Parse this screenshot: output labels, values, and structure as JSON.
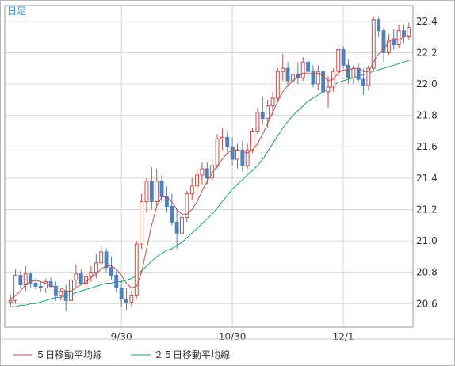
{
  "chart_data": {
    "type": "candlestick",
    "period_label": "日足",
    "ylim": [
      20.45,
      22.5
    ],
    "y_ticks": [
      20.6,
      20.8,
      21.0,
      21.2,
      21.4,
      21.6,
      21.8,
      22.0,
      22.2,
      22.4
    ],
    "y_tick_labels": [
      "20.6",
      "20.8",
      "21.0",
      "21.2",
      "21.4",
      "21.6",
      "21.8",
      "22.0",
      "22.2",
      "22.4"
    ],
    "x_ticks": [
      {
        "index": 22,
        "label": "9/30"
      },
      {
        "index": 44,
        "label": "10/30"
      },
      {
        "index": 66,
        "label": "12/1"
      }
    ],
    "grid": true,
    "up_color": "#c0504d",
    "down_color": "#4f81bd",
    "legend": [
      {
        "label": "５日移動平均線",
        "color": "#c0504d"
      },
      {
        "label": "２５日移動平均線",
        "color": "#1a9f74"
      }
    ],
    "candles": [
      [
        20.61,
        20.66,
        20.58,
        20.62
      ],
      [
        20.62,
        20.82,
        20.6,
        20.78
      ],
      [
        20.78,
        20.81,
        20.7,
        20.72
      ],
      [
        20.72,
        20.84,
        20.68,
        20.79
      ],
      [
        20.79,
        20.8,
        20.7,
        20.73
      ],
      [
        20.73,
        20.76,
        20.69,
        20.71
      ],
      [
        20.71,
        20.74,
        20.68,
        20.7
      ],
      [
        20.7,
        20.76,
        20.67,
        20.74
      ],
      [
        20.74,
        20.77,
        20.7,
        20.71
      ],
      [
        20.71,
        20.74,
        20.62,
        20.65
      ],
      [
        20.65,
        20.7,
        20.62,
        20.68
      ],
      [
        20.68,
        20.72,
        20.55,
        20.62
      ],
      [
        20.62,
        20.8,
        20.6,
        20.75
      ],
      [
        20.75,
        20.85,
        20.7,
        20.79
      ],
      [
        20.79,
        20.82,
        20.72,
        20.73
      ],
      [
        20.73,
        20.8,
        20.7,
        20.77
      ],
      [
        20.77,
        20.84,
        20.74,
        20.8
      ],
      [
        20.8,
        20.92,
        20.76,
        20.86
      ],
      [
        20.86,
        20.97,
        20.82,
        20.93
      ],
      [
        20.93,
        20.95,
        20.8,
        20.83
      ],
      [
        20.83,
        20.9,
        20.75,
        20.78
      ],
      [
        20.78,
        20.82,
        20.67,
        20.7
      ],
      [
        20.7,
        20.75,
        20.58,
        20.63
      ],
      [
        20.63,
        20.7,
        20.56,
        20.61
      ],
      [
        20.61,
        20.68,
        20.58,
        20.65
      ],
      [
        20.65,
        21.0,
        20.63,
        20.98
      ],
      [
        20.98,
        21.3,
        20.95,
        21.25
      ],
      [
        21.25,
        21.4,
        21.18,
        21.38
      ],
      [
        21.38,
        21.47,
        21.2,
        21.25
      ],
      [
        21.25,
        21.46,
        21.22,
        21.38
      ],
      [
        21.38,
        21.42,
        21.25,
        21.28
      ],
      [
        21.28,
        21.35,
        21.18,
        21.22
      ],
      [
        21.22,
        21.3,
        21.1,
        21.12
      ],
      [
        21.12,
        21.2,
        20.95,
        21.05
      ],
      [
        21.05,
        21.18,
        21.0,
        21.15
      ],
      [
        21.15,
        21.32,
        21.12,
        21.3
      ],
      [
        21.3,
        21.4,
        21.26,
        21.35
      ],
      [
        21.35,
        21.45,
        21.3,
        21.42
      ],
      [
        21.42,
        21.5,
        21.36,
        21.46
      ],
      [
        21.46,
        21.5,
        21.36,
        21.4
      ],
      [
        21.4,
        21.52,
        21.38,
        21.48
      ],
      [
        21.48,
        21.68,
        21.46,
        21.65
      ],
      [
        21.65,
        21.72,
        21.58,
        21.66
      ],
      [
        21.66,
        21.7,
        21.55,
        21.6
      ],
      [
        21.6,
        21.66,
        21.48,
        21.52
      ],
      [
        21.52,
        21.62,
        21.46,
        21.58
      ],
      [
        21.58,
        21.64,
        21.44,
        21.48
      ],
      [
        21.48,
        21.62,
        21.46,
        21.58
      ],
      [
        21.58,
        21.72,
        21.56,
        21.7
      ],
      [
        21.7,
        21.85,
        21.68,
        21.82
      ],
      [
        21.82,
        21.92,
        21.74,
        21.78
      ],
      [
        21.78,
        21.9,
        21.72,
        21.86
      ],
      [
        21.86,
        21.95,
        21.8,
        21.91
      ],
      [
        21.91,
        22.1,
        21.88,
        22.08
      ],
      [
        22.08,
        22.19,
        22.02,
        22.1
      ],
      [
        22.1,
        22.14,
        21.98,
        22.02
      ],
      [
        22.02,
        22.1,
        21.96,
        22.06
      ],
      [
        22.06,
        22.14,
        22.0,
        22.04
      ],
      [
        22.04,
        22.17,
        22.02,
        22.14
      ],
      [
        22.14,
        22.16,
        22.02,
        22.08
      ],
      [
        22.08,
        22.12,
        21.98,
        22.0
      ],
      [
        22.0,
        22.12,
        21.96,
        22.08
      ],
      [
        22.08,
        22.1,
        21.92,
        21.95
      ],
      [
        21.95,
        22.05,
        21.85,
        21.98
      ],
      [
        21.98,
        22.1,
        21.95,
        22.08
      ],
      [
        22.08,
        22.22,
        22.05,
        22.22
      ],
      [
        22.22,
        22.24,
        22.1,
        22.12
      ],
      [
        22.12,
        22.16,
        22.0,
        22.04
      ],
      [
        22.04,
        22.12,
        22.0,
        22.1
      ],
      [
        22.1,
        22.13,
        22.01,
        22.03
      ],
      [
        22.03,
        22.1,
        21.93,
        21.99
      ],
      [
        21.99,
        22.12,
        21.96,
        22.1
      ],
      [
        22.1,
        22.43,
        22.08,
        22.41
      ],
      [
        22.41,
        22.43,
        22.3,
        22.34
      ],
      [
        22.34,
        22.36,
        22.14,
        22.2
      ],
      [
        22.2,
        22.32,
        22.18,
        22.28
      ],
      [
        22.28,
        22.35,
        22.22,
        22.25
      ],
      [
        22.25,
        22.38,
        22.23,
        22.34
      ],
      [
        22.34,
        22.38,
        22.26,
        22.3
      ],
      [
        22.3,
        22.39,
        22.28,
        22.36
      ]
    ],
    "ma5": [
      20.63,
      20.65,
      20.68,
      20.72,
      20.74,
      20.75,
      20.74,
      20.73,
      20.72,
      20.7,
      20.7,
      20.68,
      20.68,
      20.7,
      20.72,
      20.74,
      20.77,
      20.79,
      20.82,
      20.84,
      20.84,
      20.82,
      20.78,
      20.73,
      20.7,
      20.71,
      20.8,
      20.95,
      21.1,
      21.22,
      21.28,
      21.28,
      21.25,
      21.2,
      21.17,
      21.17,
      21.2,
      21.25,
      21.32,
      21.38,
      21.43,
      21.48,
      21.52,
      21.56,
      21.58,
      21.58,
      21.57,
      21.56,
      21.58,
      21.62,
      21.68,
      21.75,
      21.82,
      21.89,
      21.95,
      21.99,
      22.02,
      22.05,
      22.07,
      22.07,
      22.06,
      22.07,
      22.05,
      22.02,
      22.03,
      22.07,
      22.09,
      22.09,
      22.1,
      22.1,
      22.08,
      22.08,
      22.14,
      22.19,
      22.22,
      22.27,
      22.29,
      22.28,
      22.3,
      22.31
    ],
    "ma25": [
      20.58,
      20.58,
      20.59,
      20.59,
      20.6,
      20.6,
      20.61,
      20.62,
      20.63,
      20.64,
      20.64,
      20.65,
      20.66,
      20.67,
      20.68,
      20.69,
      20.7,
      20.71,
      20.72,
      20.73,
      20.73,
      20.74,
      20.74,
      20.75,
      20.76,
      20.78,
      20.81,
      20.84,
      20.87,
      20.9,
      20.92,
      20.94,
      20.95,
      20.97,
      20.99,
      21.02,
      21.05,
      21.08,
      21.11,
      21.14,
      21.17,
      21.21,
      21.25,
      21.29,
      21.33,
      21.36,
      21.39,
      21.42,
      21.45,
      21.48,
      21.52,
      21.57,
      21.62,
      21.67,
      21.72,
      21.76,
      21.8,
      21.83,
      21.86,
      21.89,
      21.91,
      21.93,
      21.95,
      21.97,
      21.99,
      22.01,
      22.02,
      22.03,
      22.04,
      22.05,
      22.06,
      22.07,
      22.08,
      22.09,
      22.1,
      22.11,
      22.12,
      22.13,
      22.14,
      22.15
    ]
  }
}
